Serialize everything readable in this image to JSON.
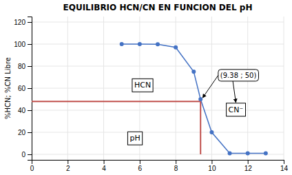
{
  "chart_data": {
    "type": "line",
    "title": "EQUILIBRIO HCN/CN EN FUNCION DEL pH",
    "y_label": "%HCN; %CN Libre",
    "x": [
      5,
      6,
      7,
      8,
      9,
      9.38,
      10,
      11,
      12,
      13
    ],
    "values": [
      100,
      100,
      99.8,
      97,
      75,
      50,
      20,
      1,
      1,
      1
    ],
    "color": "#4472c4",
    "marker": "circle",
    "xlim": [
      0,
      14
    ],
    "ylim": [
      -5,
      125
    ],
    "xticks": [
      0,
      2,
      4,
      6,
      8,
      10,
      12,
      14
    ],
    "yticks": [
      0,
      20,
      40,
      60,
      80,
      100,
      120
    ],
    "grid": true,
    "hline": {
      "y": 48,
      "xmin": 0,
      "xmax": 9.38,
      "color": "#c0504d"
    },
    "vline": {
      "x": 9.38,
      "ymin": 0,
      "ymax": 48,
      "color": "#c0504d"
    },
    "annotations": [
      {
        "text": "HCN"
      },
      {
        "text": "CN⁻"
      },
      {
        "text": "pH"
      },
      {
        "text": "(9.38 ; 50)",
        "x": 9.38,
        "y": 50
      }
    ]
  }
}
